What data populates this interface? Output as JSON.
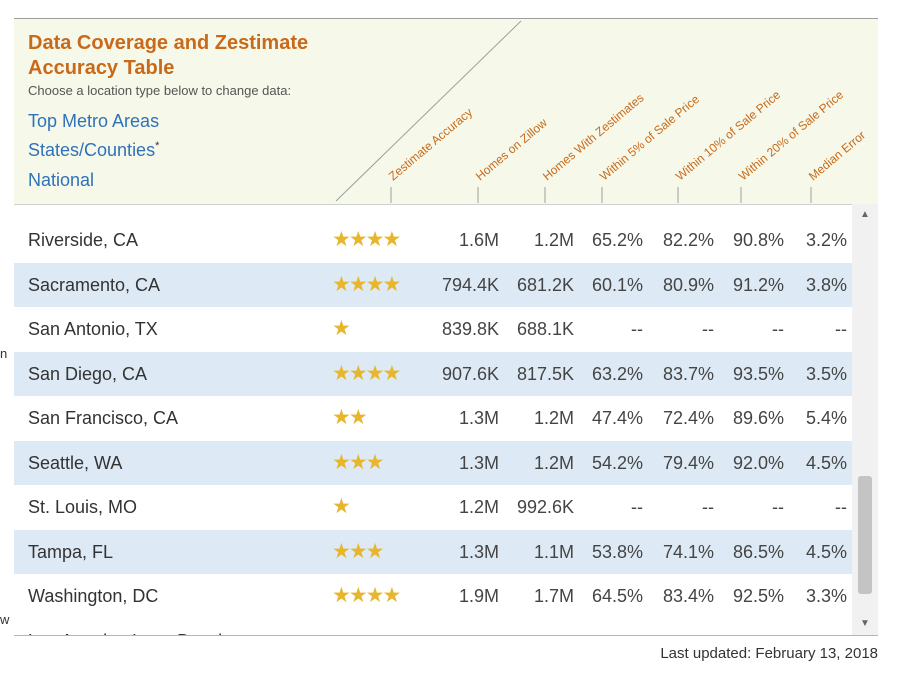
{
  "left_fragments": [
    "n",
    "w"
  ],
  "title": "Data Coverage and Zestimate Accuracy Table",
  "subtitle": "Choose a location type below to change data:",
  "location_types": [
    {
      "label": "Top Metro Areas",
      "asterisk": ""
    },
    {
      "label": "States/Counties",
      "asterisk": "*"
    },
    {
      "label": "National",
      "asterisk": ""
    }
  ],
  "columns": [
    "Zestimate Accuracy",
    "Homes on Zillow",
    "Homes With Zestimates",
    "Within 5% of Sale Price",
    "Within 10% of Sale Price",
    "Within 20% of Sale Price",
    "Median Error"
  ],
  "rows": [
    {
      "name": "Riverside, CA",
      "stars": 4,
      "homes": "1.6M",
      "zestimates": "1.2M",
      "w5": "65.2%",
      "w10": "82.2%",
      "w20": "90.8%",
      "median": "3.2%"
    },
    {
      "name": "Sacramento, CA",
      "stars": 4,
      "homes": "794.4K",
      "zestimates": "681.2K",
      "w5": "60.1%",
      "w10": "80.9%",
      "w20": "91.2%",
      "median": "3.8%"
    },
    {
      "name": "San Antonio, TX",
      "stars": 1,
      "homes": "839.8K",
      "zestimates": "688.1K",
      "w5": "--",
      "w10": "--",
      "w20": "--",
      "median": "--"
    },
    {
      "name": "San Diego, CA",
      "stars": 4,
      "homes": "907.6K",
      "zestimates": "817.5K",
      "w5": "63.2%",
      "w10": "83.7%",
      "w20": "93.5%",
      "median": "3.5%"
    },
    {
      "name": "San Francisco, CA",
      "stars": 2,
      "homes": "1.3M",
      "zestimates": "1.2M",
      "w5": "47.4%",
      "w10": "72.4%",
      "w20": "89.6%",
      "median": "5.4%"
    },
    {
      "name": "Seattle, WA",
      "stars": 3,
      "homes": "1.3M",
      "zestimates": "1.2M",
      "w5": "54.2%",
      "w10": "79.4%",
      "w20": "92.0%",
      "median": "4.5%"
    },
    {
      "name": "St. Louis, MO",
      "stars": 1,
      "homes": "1.2M",
      "zestimates": "992.6K",
      "w5": "--",
      "w10": "--",
      "w20": "--",
      "median": "--"
    },
    {
      "name": "Tampa, FL",
      "stars": 3,
      "homes": "1.3M",
      "zestimates": "1.1M",
      "w5": "53.8%",
      "w10": "74.1%",
      "w20": "86.5%",
      "median": "4.5%"
    },
    {
      "name": "Washington, DC",
      "stars": 4,
      "homes": "1.9M",
      "zestimates": "1.7M",
      "w5": "64.5%",
      "w10": "83.4%",
      "w20": "92.5%",
      "median": "3.3%"
    }
  ],
  "partial_next_row": "Los Angeles-Long Beach",
  "scrollbar": {
    "up_glyph": "▲",
    "down_glyph": "▼",
    "position": 0.8
  },
  "footer": "Last updated: February 13, 2018",
  "colors": {
    "title": "#c86a1a",
    "link": "#2e72b8",
    "header_col": "#c86a1a",
    "star": "#e8b62d",
    "alt_row": "#ddeaf5"
  },
  "star_glyph": "★"
}
